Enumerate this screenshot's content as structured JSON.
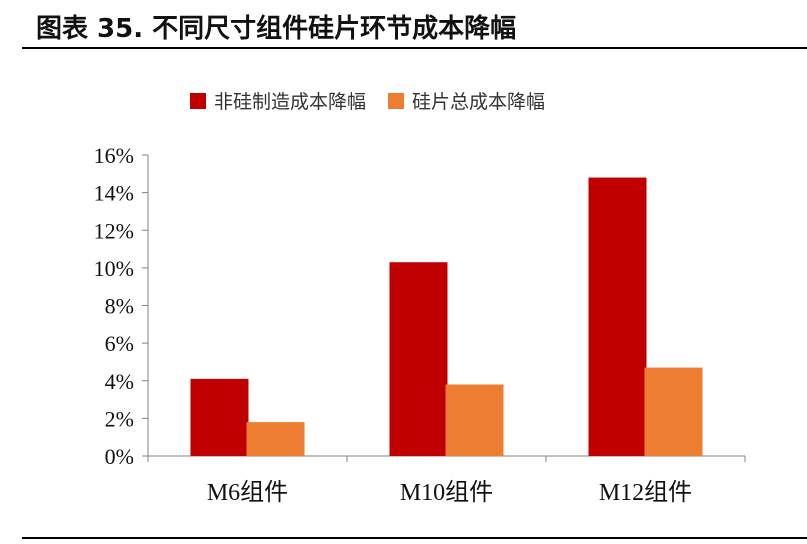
{
  "header": {
    "title": "图表 35. 不同尺寸组件硅片环节成本降幅"
  },
  "colors": {
    "non_wafer": "#c00000",
    "wafer_total": "#ed7d31",
    "axis": "#808080"
  },
  "chart_data": {
    "type": "bar",
    "title": "",
    "xlabel": "",
    "ylabel": "",
    "categories": [
      "M6组件",
      "M10组件",
      "M12组件"
    ],
    "series": [
      {
        "name": "非硅制造成本降幅",
        "values": [
          4.1,
          10.3,
          14.8
        ]
      },
      {
        "name": "硅片总成本降幅",
        "values": [
          1.8,
          3.8,
          4.7
        ]
      }
    ],
    "ylim": [
      0,
      16
    ],
    "yticks": [
      "0%",
      "2%",
      "4%",
      "6%",
      "8%",
      "10%",
      "12%",
      "14%",
      "16%"
    ],
    "ytick_values": [
      0,
      2,
      4,
      6,
      8,
      10,
      12,
      14,
      16
    ],
    "legend_position": "top",
    "grid": false
  }
}
